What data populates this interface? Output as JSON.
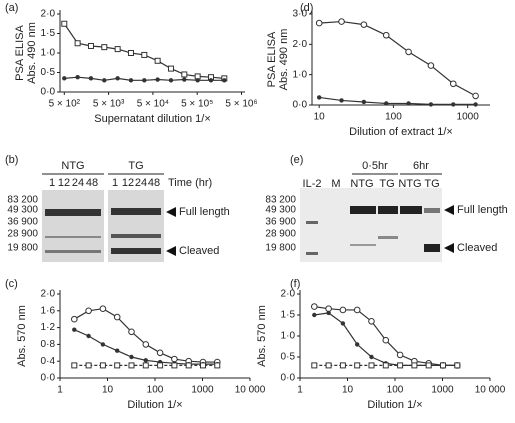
{
  "chart_data": [
    {
      "type": "line",
      "label": "(a)",
      "ylabel": [
        "PSA ELISA",
        "Abs. 490 nm"
      ],
      "xlabel": "Supernatant dilution 1/×",
      "xscale": "log",
      "xlim": [
        400,
        6000000
      ],
      "xticks": [
        {
          "value": 500,
          "label": "5 × 10²"
        },
        {
          "value": 5000,
          "label": "5 × 10³"
        },
        {
          "value": 50000,
          "label": "5 × 10⁴"
        },
        {
          "value": 500000,
          "label": "5 × 10⁵"
        },
        {
          "value": 5000000,
          "label": "5 × 10⁶"
        }
      ],
      "ylim": [
        0,
        2
      ],
      "yticks": [
        {
          "value": 0,
          "label": "0·0"
        },
        {
          "value": 0.5,
          "label": "0·5"
        },
        {
          "value": 1,
          "label": "1·0"
        },
        {
          "value": 1.5,
          "label": "1·5"
        },
        {
          "value": 2,
          "label": "2·0"
        }
      ],
      "x": [
        500,
        1000,
        2000,
        4000,
        8000,
        16000,
        32000,
        64000,
        128000,
        256000,
        512000,
        1024000,
        2048000
      ],
      "series": [
        {
          "marker": "square",
          "color": "#333",
          "values": [
            1.75,
            1.25,
            1.18,
            1.15,
            1.1,
            1.0,
            0.95,
            0.8,
            0.6,
            0.45,
            0.4,
            0.38,
            0.35
          ]
        },
        {
          "marker": "dot",
          "color": "#333",
          "values": [
            0.35,
            0.38,
            0.35,
            0.3,
            0.35,
            0.3,
            0.3,
            0.32,
            0.3,
            0.32,
            0.3,
            0.3,
            0.3
          ]
        }
      ]
    },
    {
      "type": "line",
      "label": "(d)",
      "ylabel": [
        "PSA ELISA",
        "Abs. 490 nm"
      ],
      "xlabel": "Dilution of extract 1/×",
      "xscale": "log",
      "xlim": [
        8,
        2000
      ],
      "xticks": [
        10,
        100,
        1000
      ],
      "ylim": [
        0,
        3
      ],
      "yticks": [
        {
          "value": 0,
          "label": "0·0"
        },
        {
          "value": 1,
          "label": "1·0"
        },
        {
          "value": 2,
          "label": "2·0"
        },
        {
          "value": 3,
          "label": "3·0"
        }
      ],
      "x": [
        10,
        20,
        40,
        80,
        160,
        320,
        640,
        1280
      ],
      "series": [
        {
          "marker": "circle-open",
          "color": "#333",
          "values": [
            2.7,
            2.75,
            2.65,
            2.3,
            1.75,
            1.3,
            0.7,
            0.3
          ]
        },
        {
          "marker": "dot",
          "color": "#333",
          "values": [
            0.25,
            0.15,
            0.1,
            0.05,
            0.05,
            0.02,
            0.02,
            0.02
          ]
        }
      ]
    },
    {
      "type": "line",
      "label": "(c)",
      "ylabel": "Abs. 570 nm",
      "xlabel": "Dilution 1/×",
      "xscale": "log",
      "xlim": [
        1,
        10000
      ],
      "xticks": [
        1,
        10,
        100,
        1000,
        {
          "value": 10000,
          "label": "10 000"
        }
      ],
      "ylim": [
        0,
        2
      ],
      "yticks": [
        {
          "value": 0,
          "label": "0·0"
        },
        {
          "value": 0.4,
          "label": "0·4"
        },
        {
          "value": 0.8,
          "label": "0·8"
        },
        {
          "value": 1.2,
          "label": "1·2"
        },
        {
          "value": 1.6,
          "label": "1·6"
        },
        {
          "value": 2,
          "label": "2·0"
        }
      ],
      "x": [
        2,
        4,
        8,
        16,
        32,
        64,
        128,
        256,
        512,
        1024,
        2048
      ],
      "series": [
        {
          "marker": "circle-open",
          "color": "#333",
          "values": [
            1.4,
            1.6,
            1.65,
            1.45,
            1.1,
            0.8,
            0.6,
            0.45,
            0.4,
            0.38,
            0.38
          ]
        },
        {
          "marker": "dot",
          "color": "#333",
          "values": [
            1.15,
            1.0,
            0.8,
            0.65,
            0.5,
            0.42,
            0.38,
            0.35,
            0.33,
            0.33,
            0.33
          ]
        },
        {
          "marker": "square",
          "dash": true,
          "color": "#333",
          "values": [
            0.3,
            0.3,
            0.3,
            0.3,
            0.3,
            0.3,
            0.3,
            0.3,
            0.3,
            0.3,
            0.3
          ]
        }
      ]
    },
    {
      "type": "line",
      "label": "(f)",
      "ylabel": "Abs. 570 nm",
      "xlabel": "Dilution 1/×",
      "xscale": "log",
      "xlim": [
        1,
        10000
      ],
      "xticks": [
        1,
        10,
        100,
        1000,
        {
          "value": 10000,
          "label": "10 000"
        }
      ],
      "ylim": [
        0,
        2
      ],
      "yticks": [
        {
          "value": 0,
          "label": "0·0"
        },
        {
          "value": 0.5,
          "label": "0·5"
        },
        {
          "value": 1,
          "label": "1·0"
        },
        {
          "value": 1.5,
          "label": "1·5"
        },
        {
          "value": 2,
          "label": "2·0"
        }
      ],
      "x": [
        2,
        4,
        8,
        16,
        32,
        64,
        128,
        256,
        512,
        1024,
        2048
      ],
      "series": [
        {
          "marker": "circle-open",
          "color": "#333",
          "values": [
            1.7,
            1.65,
            1.62,
            1.62,
            1.35,
            0.9,
            0.55,
            0.4,
            0.35,
            0.3,
            0.3
          ]
        },
        {
          "marker": "dot",
          "color": "#333",
          "values": [
            1.5,
            1.55,
            1.3,
            0.8,
            0.5,
            0.35,
            0.3,
            0.3,
            0.3,
            0.3,
            0.3
          ]
        },
        {
          "marker": "square",
          "dash": true,
          "color": "#333",
          "values": [
            0.3,
            0.3,
            0.3,
            0.3,
            0.3,
            0.3,
            0.3,
            0.3,
            0.3,
            0.3,
            0.3
          ]
        }
      ]
    }
  ],
  "blots": [
    {
      "label": "(b)",
      "groups": [
        "NTG",
        "TG"
      ],
      "lanes": [
        "1",
        "12",
        "24",
        "48",
        "1",
        "12",
        "24",
        "48"
      ],
      "lane_axis": "Time (hr)",
      "markers": [
        "83 200",
        "49 300",
        "36 900",
        "28 900",
        "19 800"
      ],
      "bands": [
        "Full length",
        "Cleaved"
      ]
    },
    {
      "label": "(e)",
      "groups": [
        "0·5hr",
        "6hr"
      ],
      "lanes": [
        "IL-2",
        "M",
        "NTG",
        "TG",
        "NTG",
        "TG"
      ],
      "markers": [
        "83 200",
        "49 300",
        "36 900",
        "28 900",
        "19 800"
      ],
      "bands": [
        "Full length",
        "Cleaved"
      ]
    }
  ]
}
